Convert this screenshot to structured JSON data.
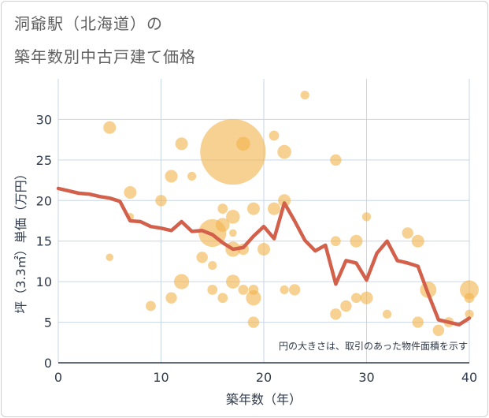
{
  "chart_data": {
    "type": "scatter",
    "title_line1": "洞爺駅（北海道）の",
    "title_line2": "築年数別中古戸建て価格",
    "xlabel": "築年数（年）",
    "ylabel": "坪（3.3㎡）単価（万円）",
    "note": "円の大きさは、取引のあった物件面積を示す",
    "xlim": [
      0,
      40
    ],
    "ylim": [
      0,
      35
    ],
    "x_ticks": [
      "0",
      "10",
      "20",
      "30",
      "40"
    ],
    "y_ticks": [
      "0",
      "5",
      "10",
      "15",
      "20",
      "25",
      "30"
    ],
    "colors": {
      "bubble": "#f2b24a",
      "line": "#d2604a",
      "grid": "#c9d6e4"
    },
    "bubbles": [
      {
        "x": 5,
        "y": 29,
        "s": 1.0
      },
      {
        "x": 5,
        "y": 13,
        "s": 0.6
      },
      {
        "x": 7,
        "y": 21,
        "s": 1.0
      },
      {
        "x": 7,
        "y": 18,
        "s": 0.6
      },
      {
        "x": 9,
        "y": 7,
        "s": 0.8
      },
      {
        "x": 10,
        "y": 20,
        "s": 0.9
      },
      {
        "x": 11,
        "y": 23,
        "s": 1.0
      },
      {
        "x": 11,
        "y": 8,
        "s": 0.9
      },
      {
        "x": 12,
        "y": 27,
        "s": 1.0
      },
      {
        "x": 12,
        "y": 10,
        "s": 1.2
      },
      {
        "x": 13,
        "y": 23,
        "s": 0.7
      },
      {
        "x": 14,
        "y": 13,
        "s": 0.9
      },
      {
        "x": 15,
        "y": 12,
        "s": 0.7
      },
      {
        "x": 15,
        "y": 9,
        "s": 0.8
      },
      {
        "x": 15,
        "y": 16,
        "s": 2.2
      },
      {
        "x": 16,
        "y": 19,
        "s": 0.8
      },
      {
        "x": 16,
        "y": 17,
        "s": 1.1
      },
      {
        "x": 16,
        "y": 8,
        "s": 0.8
      },
      {
        "x": 17,
        "y": 26,
        "s": 5.2
      },
      {
        "x": 17,
        "y": 18,
        "s": 1.1
      },
      {
        "x": 17,
        "y": 16,
        "s": 0.6
      },
      {
        "x": 17,
        "y": 14,
        "s": 1.2
      },
      {
        "x": 17,
        "y": 10,
        "s": 1.1
      },
      {
        "x": 18,
        "y": 27,
        "s": 1.1
      },
      {
        "x": 18,
        "y": 14,
        "s": 0.9
      },
      {
        "x": 18,
        "y": 9,
        "s": 0.8
      },
      {
        "x": 19,
        "y": 19,
        "s": 1.0
      },
      {
        "x": 19,
        "y": 9,
        "s": 0.8
      },
      {
        "x": 19,
        "y": 8,
        "s": 1.2
      },
      {
        "x": 19,
        "y": 5,
        "s": 0.9
      },
      {
        "x": 20,
        "y": 14,
        "s": 1.0
      },
      {
        "x": 21,
        "y": 28,
        "s": 0.8
      },
      {
        "x": 21,
        "y": 19,
        "s": 1.0
      },
      {
        "x": 22,
        "y": 26,
        "s": 1.1
      },
      {
        "x": 22,
        "y": 20,
        "s": 1.0
      },
      {
        "x": 22,
        "y": 9,
        "s": 0.7
      },
      {
        "x": 23,
        "y": 9,
        "s": 0.9
      },
      {
        "x": 24,
        "y": 33,
        "s": 0.7
      },
      {
        "x": 27,
        "y": 25,
        "s": 0.9
      },
      {
        "x": 27,
        "y": 15,
        "s": 0.8
      },
      {
        "x": 27,
        "y": 6,
        "s": 0.9
      },
      {
        "x": 28,
        "y": 7,
        "s": 0.9
      },
      {
        "x": 29,
        "y": 15,
        "s": 1.0
      },
      {
        "x": 29,
        "y": 8,
        "s": 0.8
      },
      {
        "x": 30,
        "y": 18,
        "s": 0.7
      },
      {
        "x": 30,
        "y": 8,
        "s": 1.0
      },
      {
        "x": 32,
        "y": 6,
        "s": 0.7
      },
      {
        "x": 34,
        "y": 16,
        "s": 0.9
      },
      {
        "x": 35,
        "y": 15,
        "s": 1.0
      },
      {
        "x": 35,
        "y": 5,
        "s": 0.9
      },
      {
        "x": 36,
        "y": 9,
        "s": 1.3
      },
      {
        "x": 37,
        "y": 4,
        "s": 0.9
      },
      {
        "x": 38,
        "y": 5,
        "s": 0.8
      },
      {
        "x": 40,
        "y": 9,
        "s": 1.5
      },
      {
        "x": 40,
        "y": 8,
        "s": 0.8
      },
      {
        "x": 40,
        "y": 6,
        "s": 0.7
      }
    ],
    "line": {
      "x": [
        0,
        1,
        2,
        3,
        4,
        5,
        6,
        7,
        8,
        9,
        10,
        11,
        12,
        13,
        14,
        15,
        16,
        17,
        18,
        19,
        20,
        21,
        22,
        23,
        24,
        25,
        26,
        27,
        28,
        29,
        30,
        31,
        32,
        33,
        34,
        35,
        36,
        37,
        38,
        39,
        40
      ],
      "y": [
        21.5,
        21.2,
        20.9,
        20.8,
        20.5,
        20.3,
        19.9,
        17.5,
        17.4,
        16.8,
        16.6,
        16.3,
        17.4,
        16.2,
        16.3,
        15.8,
        14.8,
        14.0,
        14.2,
        15.6,
        16.8,
        15.3,
        19.7,
        17.5,
        15.1,
        13.8,
        14.5,
        9.7,
        12.6,
        12.3,
        10.2,
        13.5,
        15.0,
        12.6,
        12.3,
        11.9,
        8.5,
        5.3,
        5.0,
        4.7,
        5.5
      ]
    }
  }
}
